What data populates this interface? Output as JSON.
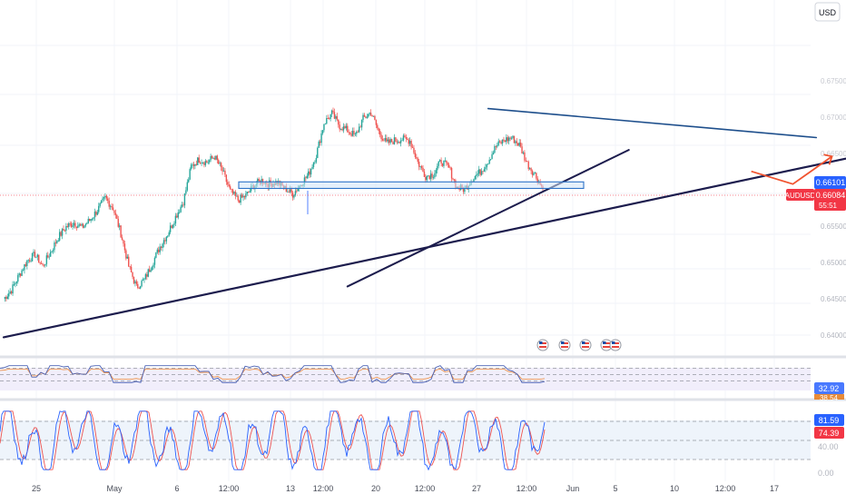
{
  "currency_label": "USD",
  "chart_data": {
    "type": "candlestick",
    "symbol": "AUDUSD",
    "currency": "USD",
    "price_axis": {
      "ticks": [
        "0.66101",
        "0.65500",
        "0.65000",
        "0.64500",
        "0.64000"
      ],
      "faded_ticks": [
        "0.67500",
        "0.67000",
        "0.66500"
      ],
      "range": [
        0.6382,
        0.6785
      ]
    },
    "current_price": "0.66084",
    "countdown": "55:51",
    "last_label_value": "0.66101",
    "time_axis": {
      "labels": [
        "25",
        "May",
        "6",
        "12:00",
        "13",
        "12:00",
        "20",
        "12:00",
        "27",
        "12:00",
        "Jun",
        "5",
        "10",
        "12:00",
        "17"
      ]
    },
    "price_series": [
      0.645,
      0.6462,
      0.6483,
      0.6502,
      0.6511,
      0.6495,
      0.6514,
      0.6535,
      0.6549,
      0.6555,
      0.6548,
      0.6558,
      0.6572,
      0.6589,
      0.6575,
      0.654,
      0.6495,
      0.6466,
      0.6476,
      0.6498,
      0.6522,
      0.654,
      0.6563,
      0.6584,
      0.6632,
      0.6642,
      0.6638,
      0.6646,
      0.6626,
      0.6598,
      0.6586,
      0.6592,
      0.6606,
      0.6613,
      0.6608,
      0.6611,
      0.6602,
      0.6594,
      0.6608,
      0.6621,
      0.6648,
      0.6692,
      0.6705,
      0.6688,
      0.6682,
      0.6674,
      0.6698,
      0.6707,
      0.668,
      0.6664,
      0.6668,
      0.667,
      0.6668,
      0.6638,
      0.6619,
      0.6622,
      0.664,
      0.663,
      0.6603,
      0.6601,
      0.6616,
      0.6625,
      0.664,
      0.666,
      0.6668,
      0.6672,
      0.6662,
      0.6636,
      0.6621,
      0.6601
    ],
    "drawings": [
      {
        "type": "support-trendline",
        "points": [
          [
            0,
            0.6397
          ],
          [
            113,
            0.6655
          ]
        ]
      },
      {
        "type": "support-trendline",
        "points": [
          [
            44,
            0.6467
          ],
          [
            80,
            0.6655
          ]
        ]
      },
      {
        "type": "resistance-trendline",
        "points": [
          [
            62,
            0.6712
          ],
          [
            104,
            0.6672
          ]
        ]
      },
      {
        "type": "support-zone",
        "range": [
          0.6602,
          0.6611
        ]
      },
      {
        "type": "projection-arrow",
        "points": [
          [
            98,
            0.6603
          ],
          [
            101,
            0.6618
          ],
          [
            106,
            0.6646
          ]
        ]
      }
    ],
    "rsi": {
      "last_value": "32.92",
      "second_value": "38.54",
      "levels": [
        70,
        50,
        30
      ]
    },
    "stochastic": {
      "k_value": "81.59",
      "d_value": "74.39",
      "tick": "40.00",
      "zero_tick": "0.00",
      "levels": [
        80,
        50,
        20
      ]
    },
    "event_markers": 5
  }
}
